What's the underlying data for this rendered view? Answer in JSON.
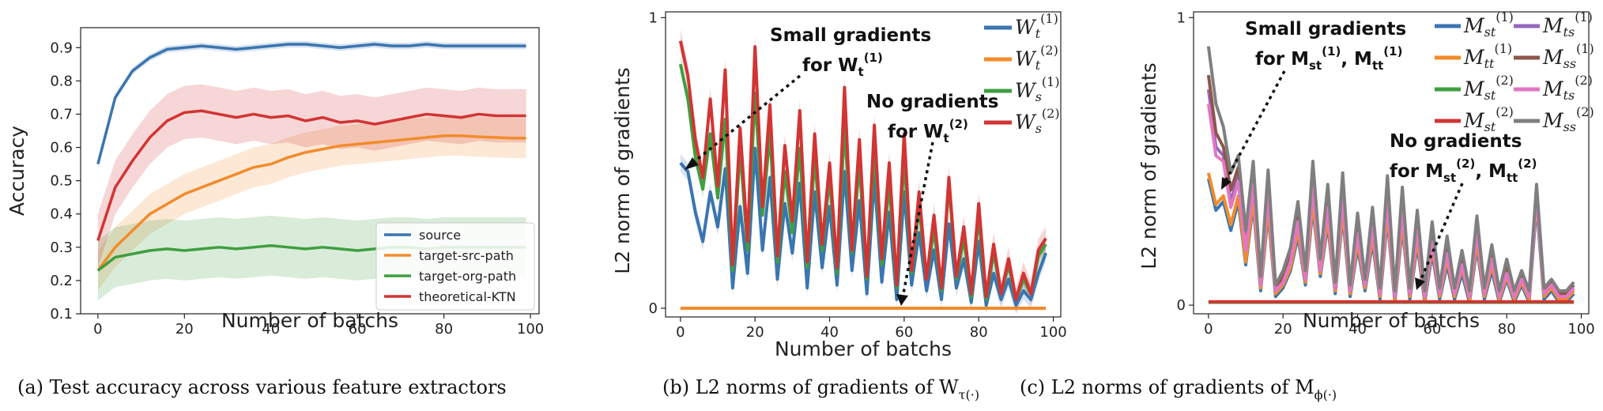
{
  "colors": {
    "blue": "#3a75b0",
    "orange": "#f28b2b",
    "green": "#3f9e3f",
    "red": "#d23434",
    "purple": "#9467bd",
    "brown": "#8c564b",
    "pink": "#e377c2",
    "gray": "#7f7f7f"
  },
  "captions": {
    "a": "(a)  Test accuracy across various feature extractors",
    "b": "(b)  L2 norms of gradients of W",
    "b_sub": "τ(·)",
    "c": "(c)  L2 norms of gradients of M",
    "c_sub": "ϕ(·)"
  },
  "annotations": {
    "b_small_line1": "Small gradients",
    "b_small_line2": "for W",
    "b_small_sub": "t",
    "b_small_sup": "(1)",
    "b_none_line1": "No gradients",
    "b_none_line2": "for W",
    "b_none_sub": "t",
    "b_none_sup": "(2)",
    "c_small_line1": "Small gradients",
    "c_small_line2": "for M",
    "c_small_a_sub": "st",
    "c_small_a_sup": "(1)",
    "c_small_sep": ", M",
    "c_small_b_sub": "tt",
    "c_small_b_sup": "(1)",
    "c_none_line1": "No gradients",
    "c_none_line2": "for M",
    "c_none_a_sub": "st",
    "c_none_a_sup": "(2)",
    "c_none_sep": ", M",
    "c_none_b_sub": "tt",
    "c_none_b_sup": "(2)"
  },
  "chart_data": [
    {
      "type": "line",
      "xlabel": "Number of batchs",
      "ylabel": "Accuracy",
      "xlim": [
        -4,
        102
      ],
      "ylim": [
        0.1,
        0.96
      ],
      "xticks": [
        0,
        20,
        40,
        60,
        80,
        100
      ],
      "yticks": [
        0.1,
        0.2,
        0.3,
        0.4,
        0.5,
        0.6,
        0.7,
        0.8,
        0.9
      ],
      "grid": false,
      "legend": "bottom-right",
      "x": [
        0,
        4,
        8,
        12,
        16,
        20,
        24,
        28,
        32,
        36,
        40,
        44,
        48,
        52,
        56,
        60,
        64,
        68,
        72,
        76,
        80,
        84,
        88,
        92,
        96,
        99
      ],
      "series": [
        {
          "name": "source",
          "color": "blue",
          "values": [
            0.55,
            0.75,
            0.83,
            0.87,
            0.895,
            0.9,
            0.905,
            0.9,
            0.895,
            0.9,
            0.905,
            0.91,
            0.91,
            0.905,
            0.9,
            0.905,
            0.91,
            0.905,
            0.905,
            0.91,
            0.905,
            0.905,
            0.905,
            0.905,
            0.905,
            0.905
          ],
          "band": 0.01
        },
        {
          "name": "target-src-path",
          "color": "orange",
          "values": [
            0.23,
            0.3,
            0.35,
            0.4,
            0.43,
            0.46,
            0.48,
            0.5,
            0.52,
            0.54,
            0.55,
            0.57,
            0.585,
            0.595,
            0.605,
            0.61,
            0.615,
            0.62,
            0.625,
            0.63,
            0.635,
            0.635,
            0.632,
            0.63,
            0.628,
            0.628
          ],
          "band": 0.06
        },
        {
          "name": "target-org-path",
          "color": "green",
          "values": [
            0.23,
            0.27,
            0.28,
            0.29,
            0.295,
            0.29,
            0.295,
            0.3,
            0.295,
            0.3,
            0.305,
            0.3,
            0.295,
            0.3,
            0.295,
            0.29,
            0.295,
            0.3,
            0.3,
            0.295,
            0.3,
            0.3,
            0.3,
            0.3,
            0.3,
            0.3
          ],
          "band": 0.09
        },
        {
          "name": "theoretical-KTN",
          "color": "red",
          "values": [
            0.32,
            0.48,
            0.56,
            0.63,
            0.68,
            0.705,
            0.71,
            0.7,
            0.69,
            0.7,
            0.69,
            0.695,
            0.68,
            0.69,
            0.675,
            0.68,
            0.67,
            0.68,
            0.69,
            0.7,
            0.695,
            0.69,
            0.7,
            0.695,
            0.695,
            0.695
          ],
          "band": 0.08
        }
      ]
    },
    {
      "type": "line",
      "xlabel": "Number of batchs",
      "ylabel": "L2 norm of gradients",
      "xlim": [
        -4,
        102
      ],
      "ylim": [
        -0.03,
        1.02
      ],
      "xticks": [
        0,
        20,
        40,
        60,
        80,
        100
      ],
      "yticks": [
        0,
        1
      ],
      "legend": "top-right",
      "x": [
        0,
        2,
        4,
        6,
        8,
        10,
        12,
        14,
        16,
        18,
        20,
        22,
        24,
        26,
        28,
        30,
        32,
        34,
        36,
        38,
        40,
        42,
        44,
        46,
        48,
        50,
        52,
        54,
        56,
        58,
        60,
        62,
        64,
        66,
        68,
        70,
        72,
        74,
        76,
        78,
        80,
        82,
        84,
        86,
        88,
        90,
        92,
        94,
        96,
        98
      ],
      "series": [
        {
          "name": "W_t^(1)",
          "label_sub": "t",
          "label_sup": "(1)",
          "color": "blue",
          "values": [
            0.5,
            0.47,
            0.33,
            0.23,
            0.4,
            0.28,
            0.48,
            0.07,
            0.35,
            0.12,
            0.55,
            0.2,
            0.45,
            0.1,
            0.36,
            0.19,
            0.43,
            0.07,
            0.4,
            0.14,
            0.35,
            0.08,
            0.47,
            0.13,
            0.37,
            0.05,
            0.45,
            0.09,
            0.33,
            0.03,
            0.4,
            0.08,
            0.26,
            0.06,
            0.2,
            0.03,
            0.29,
            0.07,
            0.17,
            0.02,
            0.23,
            0.01,
            0.12,
            0.03,
            0.1,
            0.01,
            0.06,
            0.03,
            0.12,
            0.19
          ],
          "band": 0.03
        },
        {
          "name": "W_t^(2)",
          "label_sub": "t",
          "label_sup": "(2)",
          "color": "orange",
          "values": [
            0,
            0,
            0,
            0,
            0,
            0,
            0,
            0,
            0,
            0,
            0,
            0,
            0,
            0,
            0,
            0,
            0,
            0,
            0,
            0,
            0,
            0,
            0,
            0,
            0,
            0,
            0,
            0,
            0,
            0,
            0,
            0,
            0,
            0,
            0,
            0,
            0,
            0,
            0,
            0,
            0,
            0,
            0,
            0,
            0,
            0,
            0,
            0,
            0,
            0
          ],
          "band": 0
        },
        {
          "name": "W_s^(1)",
          "label_sub": "s",
          "label_sup": "(1)",
          "color": "green",
          "values": [
            0.84,
            0.72,
            0.52,
            0.41,
            0.6,
            0.38,
            0.65,
            0.13,
            0.55,
            0.2,
            0.74,
            0.32,
            0.6,
            0.16,
            0.47,
            0.26,
            0.55,
            0.14,
            0.52,
            0.2,
            0.45,
            0.12,
            0.63,
            0.19,
            0.5,
            0.1,
            0.55,
            0.15,
            0.43,
            0.07,
            0.52,
            0.12,
            0.35,
            0.1,
            0.27,
            0.06,
            0.43,
            0.1,
            0.24,
            0.04,
            0.32,
            0.03,
            0.19,
            0.05,
            0.15,
            0.03,
            0.1,
            0.05,
            0.18,
            0.22
          ],
          "band": 0.03
        },
        {
          "name": "W_s^(2)",
          "label_sub": "s",
          "label_sup": "(2)",
          "color": "red",
          "values": [
            0.92,
            0.8,
            0.58,
            0.45,
            0.72,
            0.42,
            0.82,
            0.15,
            0.62,
            0.23,
            0.9,
            0.35,
            0.7,
            0.18,
            0.56,
            0.3,
            0.68,
            0.16,
            0.6,
            0.22,
            0.5,
            0.14,
            0.76,
            0.2,
            0.58,
            0.11,
            0.63,
            0.17,
            0.5,
            0.08,
            0.6,
            0.13,
            0.4,
            0.1,
            0.32,
            0.07,
            0.45,
            0.11,
            0.28,
            0.05,
            0.36,
            0.04,
            0.22,
            0.05,
            0.17,
            0.03,
            0.12,
            0.05,
            0.2,
            0.24
          ],
          "band": 0.04
        }
      ]
    },
    {
      "type": "line",
      "xlabel": "Number of batchs",
      "ylabel": "L2 norm of gradients",
      "xlim": [
        -4,
        102
      ],
      "ylim": [
        -0.03,
        1.02
      ],
      "xticks": [
        0,
        20,
        40,
        60,
        80,
        100
      ],
      "yticks": [
        0,
        1
      ],
      "legend": "top-right",
      "x": [
        0,
        2,
        4,
        6,
        8,
        10,
        12,
        14,
        16,
        18,
        20,
        22,
        24,
        26,
        28,
        30,
        32,
        34,
        36,
        38,
        40,
        42,
        44,
        46,
        48,
        50,
        52,
        54,
        56,
        58,
        60,
        62,
        64,
        66,
        68,
        70,
        72,
        74,
        76,
        78,
        80,
        82,
        84,
        86,
        88,
        90,
        92,
        94,
        96,
        98
      ],
      "series": [
        {
          "name": "M_st^(1)",
          "label_sub": "st",
          "label_sup": "(1)",
          "color": "blue",
          "values": [
            0.44,
            0.33,
            0.36,
            0.26,
            0.36,
            0.14,
            0.35,
            0.05,
            0.32,
            0.03,
            0.06,
            0.12,
            0.24,
            0.07,
            0.34,
            0.1,
            0.28,
            0.04,
            0.31,
            0.03,
            0.2,
            0.05,
            0.22,
            0.02,
            0.3,
            0.01,
            0.27,
            0.02,
            0.21,
            0.01,
            0.18,
            0.02,
            0.14,
            0.02,
            0.11,
            0.01,
            0.2,
            0.02,
            0.12,
            0.01,
            0.09,
            0.01,
            0.07,
            0.01,
            0.35,
            0.02,
            0.05,
            0.01,
            0.01,
            0.04
          ]
        },
        {
          "name": "M_tt^(1)",
          "label_sub": "tt",
          "label_sup": "(1)",
          "color": "orange",
          "values": [
            0.46,
            0.35,
            0.38,
            0.28,
            0.38,
            0.15,
            0.37,
            0.06,
            0.34,
            0.04,
            0.07,
            0.13,
            0.26,
            0.08,
            0.36,
            0.11,
            0.3,
            0.05,
            0.33,
            0.04,
            0.22,
            0.06,
            0.24,
            0.03,
            0.32,
            0.02,
            0.29,
            0.03,
            0.23,
            0.02,
            0.2,
            0.03,
            0.16,
            0.03,
            0.13,
            0.02,
            0.22,
            0.03,
            0.14,
            0.02,
            0.1,
            0.02,
            0.08,
            0.02,
            0.37,
            0.03,
            0.06,
            0.02,
            0.02,
            0.05
          ]
        },
        {
          "name": "M_st^(2)",
          "label_sub": "st",
          "label_sup": "(2)",
          "color": "green",
          "values": [
            0.01,
            0.01,
            0.01,
            0.01,
            0.01,
            0.01,
            0.01,
            0.01,
            0.01,
            0.01,
            0.01,
            0.01,
            0.01,
            0.01,
            0.01,
            0.01,
            0.01,
            0.01,
            0.01,
            0.01,
            0.01,
            0.01,
            0.01,
            0.01,
            0.01,
            0.01,
            0.01,
            0.01,
            0.01,
            0.01,
            0.01,
            0.01,
            0.01,
            0.01,
            0.01,
            0.01,
            0.01,
            0.01,
            0.01,
            0.01,
            0.01,
            0.01,
            0.01,
            0.01,
            0.01,
            0.01,
            0.01,
            0.01,
            0.01,
            0.01
          ]
        },
        {
          "name": "M_st^(2)",
          "label_sub": "st",
          "label_sup": "(2)",
          "color": "red",
          "values": [
            0.012,
            0.012,
            0.012,
            0.012,
            0.012,
            0.012,
            0.012,
            0.012,
            0.012,
            0.012,
            0.012,
            0.012,
            0.012,
            0.012,
            0.012,
            0.012,
            0.012,
            0.012,
            0.012,
            0.012,
            0.012,
            0.012,
            0.012,
            0.012,
            0.012,
            0.012,
            0.012,
            0.012,
            0.012,
            0.012,
            0.012,
            0.012,
            0.012,
            0.012,
            0.012,
            0.012,
            0.012,
            0.012,
            0.012,
            0.012,
            0.012,
            0.012,
            0.012,
            0.012,
            0.012,
            0.012,
            0.012,
            0.012,
            0.012,
            0.012
          ]
        },
        {
          "name": "M_ts^(1)",
          "label_sub": "ts",
          "label_sup": "(1)",
          "color": "purple",
          "values": [
            0.75,
            0.55,
            0.52,
            0.36,
            0.45,
            0.2,
            0.43,
            0.08,
            0.4,
            0.05,
            0.09,
            0.16,
            0.3,
            0.1,
            0.42,
            0.13,
            0.35,
            0.06,
            0.38,
            0.05,
            0.26,
            0.07,
            0.28,
            0.04,
            0.37,
            0.03,
            0.34,
            0.04,
            0.27,
            0.03,
            0.23,
            0.04,
            0.19,
            0.04,
            0.15,
            0.03,
            0.26,
            0.04,
            0.17,
            0.03,
            0.12,
            0.03,
            0.1,
            0.03,
            0.39,
            0.04,
            0.07,
            0.03,
            0.03,
            0.06
          ]
        },
        {
          "name": "M_ss^(1)",
          "label_sub": "ss",
          "label_sup": "(1)",
          "color": "brown",
          "values": [
            0.8,
            0.6,
            0.55,
            0.4,
            0.48,
            0.22,
            0.46,
            0.09,
            0.43,
            0.06,
            0.1,
            0.17,
            0.32,
            0.11,
            0.45,
            0.14,
            0.38,
            0.07,
            0.41,
            0.06,
            0.28,
            0.08,
            0.3,
            0.05,
            0.4,
            0.04,
            0.36,
            0.05,
            0.29,
            0.04,
            0.25,
            0.05,
            0.21,
            0.05,
            0.17,
            0.04,
            0.28,
            0.05,
            0.19,
            0.04,
            0.14,
            0.04,
            0.11,
            0.04,
            0.4,
            0.05,
            0.08,
            0.04,
            0.04,
            0.07
          ]
        },
        {
          "name": "M_ts^(2)",
          "label_sub": "ts",
          "label_sup": "(2)",
          "color": "pink",
          "values": [
            0.7,
            0.52,
            0.5,
            0.34,
            0.43,
            0.19,
            0.42,
            0.07,
            0.39,
            0.05,
            0.08,
            0.15,
            0.29,
            0.09,
            0.41,
            0.12,
            0.34,
            0.06,
            0.37,
            0.05,
            0.25,
            0.07,
            0.27,
            0.04,
            0.36,
            0.03,
            0.33,
            0.04,
            0.26,
            0.03,
            0.22,
            0.04,
            0.18,
            0.04,
            0.14,
            0.03,
            0.25,
            0.04,
            0.16,
            0.03,
            0.11,
            0.03,
            0.09,
            0.03,
            0.38,
            0.04,
            0.07,
            0.03,
            0.03,
            0.06
          ]
        },
        {
          "name": "M_ss^(2)",
          "label_sub": "ss",
          "label_sup": "(2)",
          "color": "gray",
          "values": [
            0.9,
            0.7,
            0.62,
            0.46,
            0.52,
            0.26,
            0.5,
            0.1,
            0.47,
            0.07,
            0.12,
            0.2,
            0.36,
            0.12,
            0.5,
            0.16,
            0.42,
            0.08,
            0.46,
            0.07,
            0.32,
            0.09,
            0.34,
            0.06,
            0.45,
            0.05,
            0.41,
            0.06,
            0.33,
            0.05,
            0.29,
            0.06,
            0.24,
            0.06,
            0.19,
            0.05,
            0.31,
            0.06,
            0.21,
            0.05,
            0.16,
            0.05,
            0.12,
            0.05,
            0.42,
            0.06,
            0.09,
            0.05,
            0.05,
            0.08
          ]
        }
      ]
    }
  ]
}
